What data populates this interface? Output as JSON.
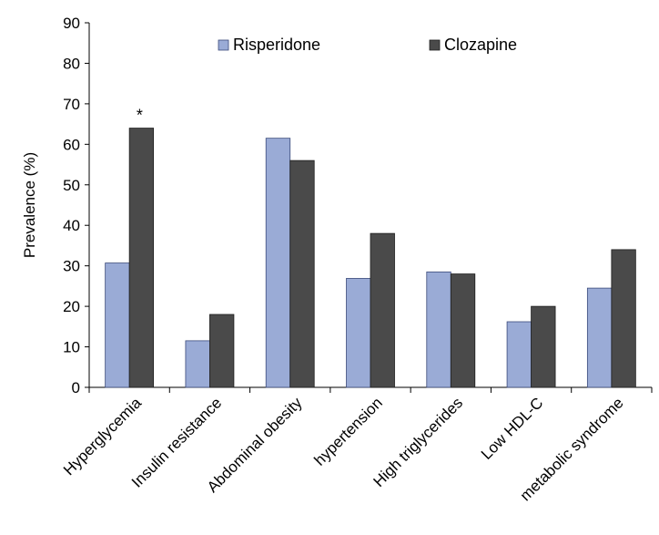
{
  "chart_data": {
    "type": "bar",
    "title": "",
    "xlabel": "",
    "ylabel": "Prevalence (%)",
    "ylim": [
      0,
      90
    ],
    "yticks": [
      0,
      10,
      20,
      30,
      40,
      50,
      60,
      70,
      80,
      90
    ],
    "grid": false,
    "legend_position": "top",
    "categories": [
      "Hyperglycemia",
      "Insulin resistance",
      "Abdominal obesity",
      "hypertension",
      "High triglycerides",
      "Low HDL-C",
      "metabolic syndrome"
    ],
    "series": [
      {
        "name": "Risperidone",
        "color": "#9aabd6",
        "values": [
          30.7,
          11.5,
          61.5,
          26.9,
          28.5,
          16.2,
          24.5
        ]
      },
      {
        "name": "Clozapine",
        "color": "#4a4a4a",
        "values": [
          64,
          18,
          56,
          38,
          28,
          20,
          34
        ]
      }
    ],
    "annotations": [
      {
        "text": "*",
        "category_index": 0,
        "series_index": 1
      }
    ]
  }
}
